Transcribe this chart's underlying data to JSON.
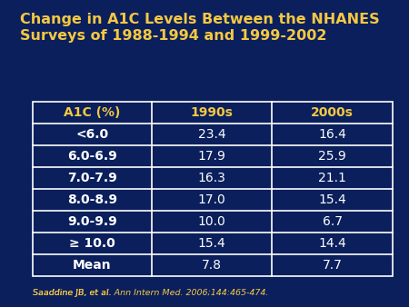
{
  "title": "Change in A1C Levels Between the NHANES\nSurveys of 1988-1994 and 1999-2002",
  "background_color": "#0a1f5c",
  "title_color": "#f5c842",
  "table_header": [
    "A1C (%)",
    "1990s",
    "2000s"
  ],
  "table_rows": [
    [
      "<6.0",
      "23.4",
      "16.4"
    ],
    [
      "6.0-6.9",
      "17.9",
      "25.9"
    ],
    [
      "7.0-7.9",
      "16.3",
      "21.1"
    ],
    [
      "8.0-8.9",
      "17.0",
      "15.4"
    ],
    [
      "9.0-9.9",
      "10.0",
      "6.7"
    ],
    [
      "≥ 10.0",
      "15.4",
      "14.4"
    ],
    [
      "Mean",
      "7.8",
      "7.7"
    ]
  ],
  "header_text_color": "#f5c842",
  "cell_text_color": "#ffffff",
  "table_border_color": "#ffffff",
  "table_bg_color": "#0a1f5c",
  "footnote": "Saaddine JB, et al. Ann Intern Med. 2006;144:465-474.",
  "footnote_color": "#f5c842"
}
